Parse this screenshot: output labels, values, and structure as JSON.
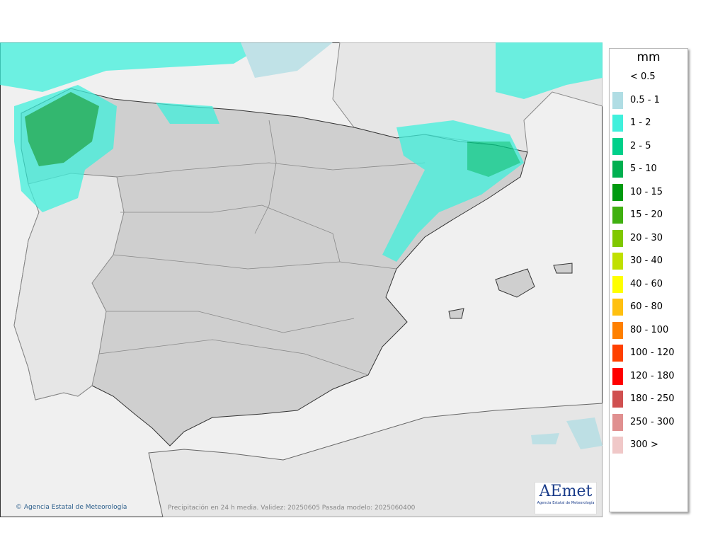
{
  "legend": {
    "title": "mm",
    "entries": [
      {
        "label": "< 0.5",
        "color": "#ffffff"
      },
      {
        "label": "0.5 - 1",
        "color": "#b0dde4"
      },
      {
        "label": "1 - 2",
        "color": "#40f0dc"
      },
      {
        "label": "2 - 5",
        "color": "#00d08a"
      },
      {
        "label": "5 - 10",
        "color": "#00b050"
      },
      {
        "label": "10 - 15",
        "color": "#009a10"
      },
      {
        "label": "15 - 20",
        "color": "#40b010"
      },
      {
        "label": "20 - 30",
        "color": "#80c800"
      },
      {
        "label": "30 - 40",
        "color": "#c0e000"
      },
      {
        "label": "40 - 60",
        "color": "#ffff00"
      },
      {
        "label": "60 - 80",
        "color": "#ffc010"
      },
      {
        "label": "80 - 100",
        "color": "#ff8000"
      },
      {
        "label": "100 - 120",
        "color": "#ff4000"
      },
      {
        "label": "120 - 180",
        "color": "#ff0000"
      },
      {
        "label": "180 - 250",
        "color": "#d05050"
      },
      {
        "label": "250 - 300",
        "color": "#e09090"
      },
      {
        "label": "300 >",
        "color": "#f0c8c8"
      }
    ]
  },
  "footer": {
    "credit": "© Agencia Estatal de Meteorología",
    "caption": "Precipitación en 24 h media. Validez: 20250605 Pasada modelo: 2025060400"
  },
  "logo": {
    "text": "AEmet",
    "subtitle": "Agencia Estatal de Meteorología"
  }
}
